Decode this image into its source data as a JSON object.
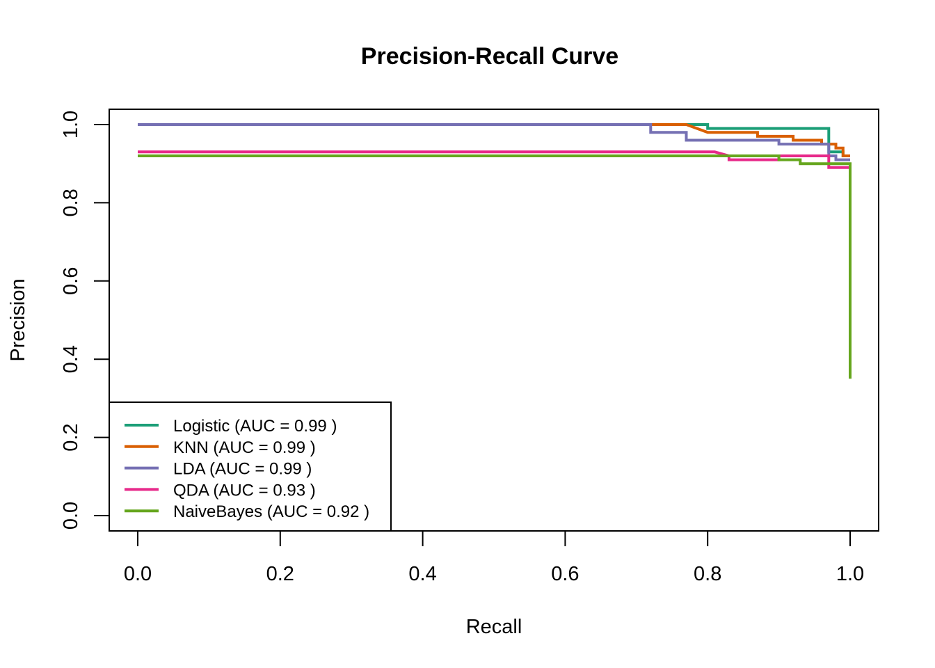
{
  "chart_data": {
    "type": "line",
    "title": "Precision-Recall Curve",
    "xlabel": "Recall",
    "ylabel": "Precision",
    "xlim": [
      0,
      1
    ],
    "ylim": [
      0,
      1
    ],
    "x_ticks": [
      "0.0",
      "0.2",
      "0.4",
      "0.6",
      "0.8",
      "1.0"
    ],
    "y_ticks": [
      "0.0",
      "0.2",
      "0.4",
      "0.6",
      "0.8",
      "1.0"
    ],
    "grid": false,
    "legend_position": "bottom-left",
    "series": [
      {
        "name": "Logistic (AUC = 0.99 )",
        "color": "#1b9e77",
        "x": [
          0.0,
          0.8,
          0.8,
          0.97,
          0.97,
          0.99,
          0.99,
          1.0
        ],
        "y": [
          1.0,
          1.0,
          0.99,
          0.99,
          0.93,
          0.93,
          0.92,
          0.92
        ]
      },
      {
        "name": "KNN (AUC = 0.99 )",
        "color": "#d95f02",
        "x": [
          0.72,
          0.77,
          0.8,
          0.8,
          0.87,
          0.87,
          0.9,
          0.9,
          0.92,
          0.92,
          0.96,
          0.96,
          0.98,
          0.98,
          0.99,
          0.99,
          1.0
        ],
        "y": [
          1.0,
          1.0,
          0.98,
          0.98,
          0.98,
          0.97,
          0.97,
          0.97,
          0.97,
          0.96,
          0.96,
          0.95,
          0.95,
          0.94,
          0.94,
          0.92,
          0.92
        ]
      },
      {
        "name": "LDA (AUC = 0.99 )",
        "color": "#7570b3",
        "x": [
          0.0,
          0.72,
          0.72,
          0.77,
          0.77,
          0.9,
          0.9,
          0.97,
          0.97,
          0.98,
          0.98,
          1.0
        ],
        "y": [
          1.0,
          1.0,
          0.98,
          0.98,
          0.96,
          0.96,
          0.95,
          0.95,
          0.92,
          0.92,
          0.91,
          0.91
        ]
      },
      {
        "name": "QDA (AUC = 0.93 )",
        "color": "#e7298a",
        "x": [
          0.0,
          0.81,
          0.83,
          0.83,
          0.9,
          0.9,
          0.97,
          0.97,
          0.99,
          0.99,
          1.0
        ],
        "y": [
          0.93,
          0.93,
          0.92,
          0.91,
          0.91,
          0.92,
          0.92,
          0.89,
          0.89,
          0.89,
          0.89
        ]
      },
      {
        "name": "NaiveBayes (AUC = 0.92 )",
        "color": "#66a61e",
        "x": [
          0.0,
          0.9,
          0.9,
          0.93,
          0.93,
          0.97,
          0.97,
          1.0,
          1.0
        ],
        "y": [
          0.92,
          0.92,
          0.91,
          0.91,
          0.9,
          0.9,
          0.9,
          0.9,
          0.35
        ]
      }
    ]
  }
}
